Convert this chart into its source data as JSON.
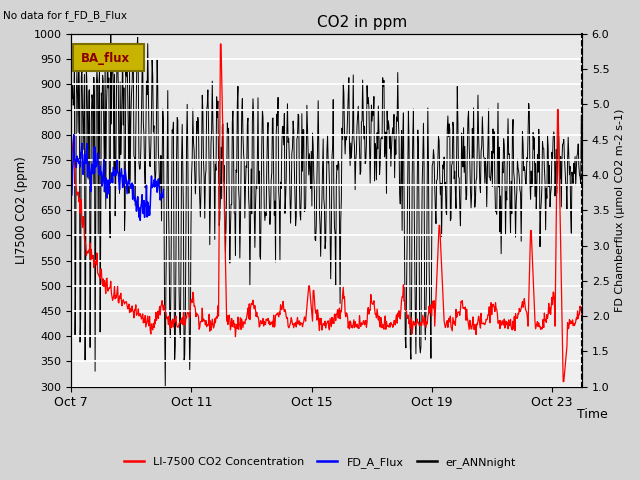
{
  "title": "CO2 in ppm",
  "top_left_text": "No data for f_FD_B_Flux",
  "badge_text": "BA_flux",
  "xlabel": "Time",
  "ylabel_left": "LI7500 CO2 (ppm)",
  "ylabel_right": "FD Chamberflux (μmol CO2 m-2 s-1)",
  "ylim_left": [
    300,
    1000
  ],
  "ylim_right": [
    1.0,
    6.0
  ],
  "yticks_left": [
    300,
    350,
    400,
    450,
    500,
    550,
    600,
    650,
    700,
    750,
    800,
    850,
    900,
    950,
    1000
  ],
  "yticks_right": [
    1.0,
    1.5,
    2.0,
    2.5,
    3.0,
    3.5,
    4.0,
    4.5,
    5.0,
    5.5,
    6.0
  ],
  "xtick_positions": [
    0,
    4,
    8,
    12,
    16
  ],
  "xtick_labels": [
    "Oct 7",
    "Oct 11",
    "Oct 15",
    "Oct 19",
    "Oct 23"
  ],
  "legend_labels": [
    "LI-7500 CO2 Concentration",
    "FD_A_Flux",
    "er_ANNnight"
  ],
  "n_days": 17,
  "pts_per_day": 48,
  "fig_bg_color": "#d4d4d4",
  "plot_bg_color": "#efefef",
  "badge_bg": "#c8b400",
  "badge_border": "#7a6e00",
  "badge_text_color": "darkred"
}
